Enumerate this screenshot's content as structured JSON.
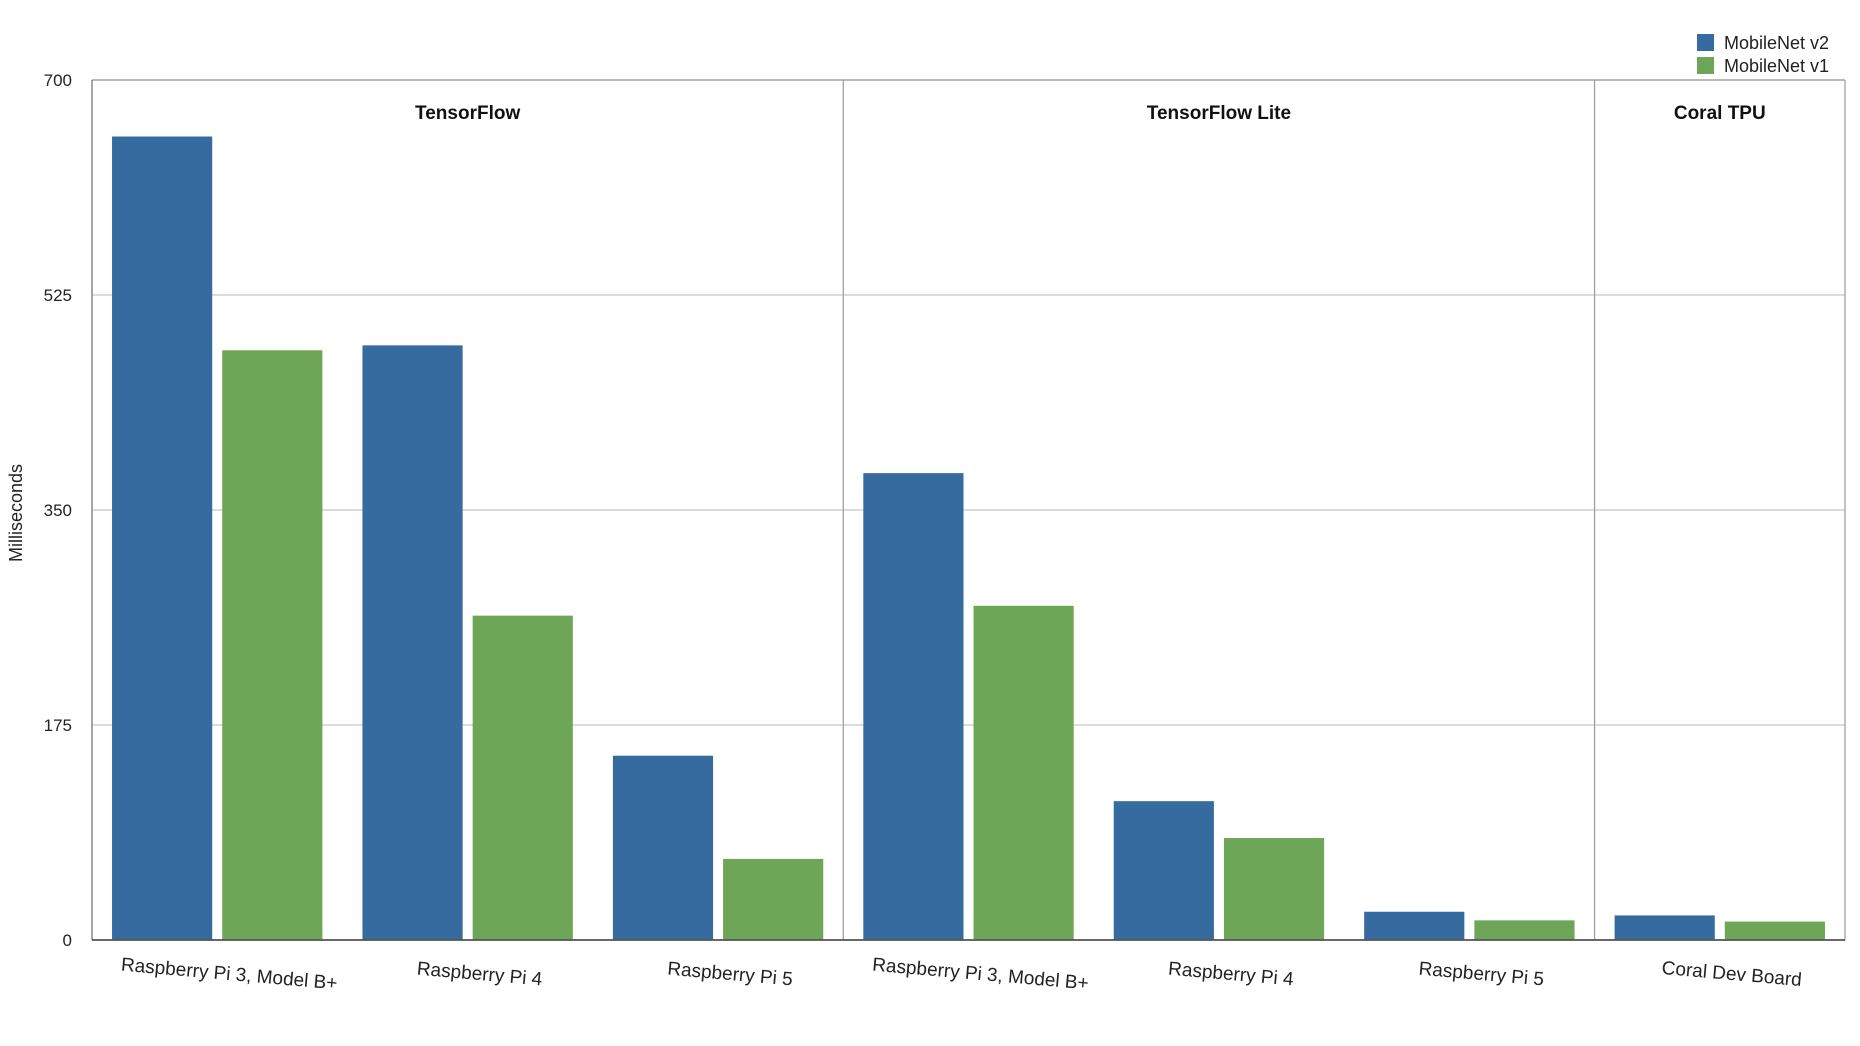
{
  "chart_data": {
    "type": "bar",
    "ylabel": "Milliseconds",
    "ylim": [
      0,
      700
    ],
    "yticks": [
      0,
      175,
      350,
      525,
      700
    ],
    "grid": true,
    "legend_position": "top-right",
    "groups": [
      {
        "name": "TensorFlow",
        "categories": [
          "Raspberry Pi 3, Model B+",
          "Raspberry Pi 4",
          "Raspberry Pi 5"
        ]
      },
      {
        "name": "TensorFlow Lite",
        "categories": [
          "Raspberry Pi 3, Model B+",
          "Raspberry Pi 4",
          "Raspberry Pi 5"
        ]
      },
      {
        "name": "Coral TPU",
        "categories": [
          "Coral Dev Board"
        ]
      }
    ],
    "series": [
      {
        "name": "MobileNet v2",
        "color": "#356b9e",
        "values": [
          654,
          484,
          150,
          380,
          113,
          23,
          20
        ]
      },
      {
        "name": "MobileNet v1",
        "color": "#6da657",
        "values": [
          480,
          264,
          66,
          272,
          83,
          16,
          15
        ]
      }
    ]
  }
}
